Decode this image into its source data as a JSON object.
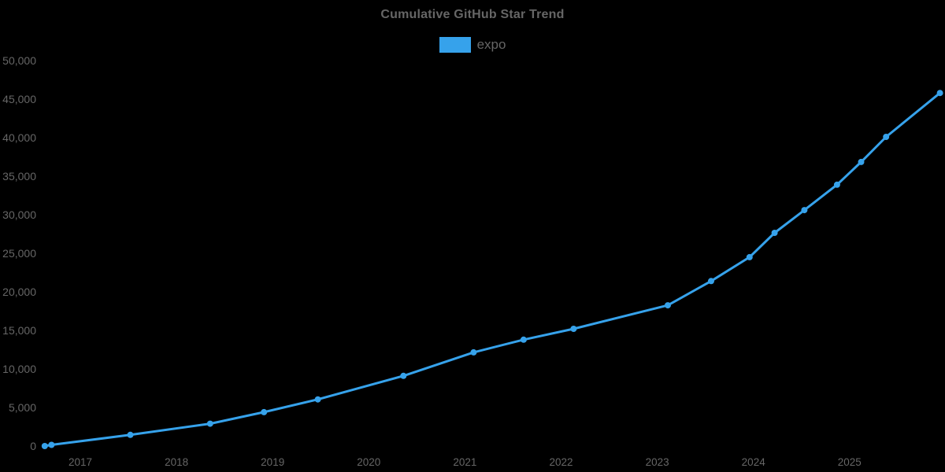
{
  "page": {
    "background_color": "#000000",
    "text_color": "#666666"
  },
  "chart_data": {
    "type": "line",
    "title": "Cumulative GitHub Star Trend",
    "xlabel": "",
    "ylabel": "",
    "grid": false,
    "legend_position": "top",
    "line_color": "#36A2EB",
    "x_axis": {
      "tick_values": [
        2017,
        2018,
        2019,
        2020,
        2021,
        2022,
        2023,
        2024,
        2025
      ],
      "tick_labels": [
        "2017",
        "2018",
        "2019",
        "2020",
        "2021",
        "2022",
        "2023",
        "2024",
        "2025"
      ],
      "range_years": [
        2016.6,
        2026.0
      ]
    },
    "y_axis": {
      "tick_values": [
        0,
        5000,
        10000,
        15000,
        20000,
        25000,
        30000,
        35000,
        40000,
        45000,
        50000
      ],
      "tick_labels": [
        "0",
        "5,000",
        "10,000",
        "15,000",
        "20,000",
        "25,000",
        "30,000",
        "35,000",
        "40,000",
        "45,000",
        "50,000"
      ],
      "range": [
        0,
        50000
      ]
    },
    "x": [
      2016.63,
      2016.7,
      2017.52,
      2018.35,
      2018.91,
      2019.47,
      2020.36,
      2021.09,
      2021.61,
      2022.13,
      2023.11,
      2023.56,
      2023.96,
      2024.22,
      2024.53,
      2024.87,
      2025.12,
      2025.38,
      2025.94
    ],
    "series": [
      {
        "name": "expo",
        "color": "#36A2EB",
        "line_width": 3,
        "point_radius": 4,
        "values": [
          0,
          150,
          1450,
          2900,
          4400,
          6050,
          9100,
          12150,
          13800,
          15200,
          18250,
          21400,
          24500,
          27650,
          30600,
          33900,
          36850,
          40100,
          45800
        ]
      }
    ]
  }
}
